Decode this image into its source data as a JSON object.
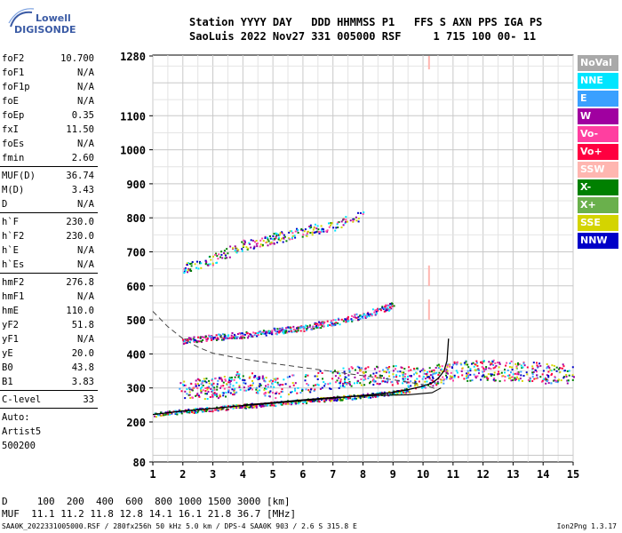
{
  "logo": {
    "line1": "Lowell",
    "line2": "DIGISONDE"
  },
  "header": {
    "line1": "Station YYYY DAY   DDD HHMMSS P1   FFS S AXN PPS IGA PS",
    "line2": "SaoLuis 2022 Nov27 331 005000 RSF     1 715 100 00- 11"
  },
  "params": [
    {
      "label": "foF2",
      "value": "10.700"
    },
    {
      "label": "foF1",
      "value": "N/A"
    },
    {
      "label": "foF1p",
      "value": "N/A"
    },
    {
      "label": "foE",
      "value": "N/A"
    },
    {
      "label": "foEp",
      "value": "0.35"
    },
    {
      "label": "fxI",
      "value": "11.50"
    },
    {
      "label": "foEs",
      "value": "N/A"
    },
    {
      "label": "fmin",
      "value": "2.60"
    },
    {
      "label": "MUF(D)",
      "value": "36.74",
      "sep_before": true
    },
    {
      "label": "M(D)",
      "value": "3.43"
    },
    {
      "label": "D",
      "value": "N/A"
    },
    {
      "label": "h`F",
      "value": "230.0",
      "sep_before": true
    },
    {
      "label": "h`F2",
      "value": "230.0"
    },
    {
      "label": "h`E",
      "value": "N/A"
    },
    {
      "label": "h`Es",
      "value": "N/A"
    },
    {
      "label": "hmF2",
      "value": "276.8",
      "sep_before": true
    },
    {
      "label": "hmF1",
      "value": "N/A"
    },
    {
      "label": "hmE",
      "value": "110.0"
    },
    {
      "label": "yF2",
      "value": "51.8"
    },
    {
      "label": "yF1",
      "value": "N/A"
    },
    {
      "label": "yE",
      "value": "20.0"
    },
    {
      "label": "B0",
      "value": "43.8"
    },
    {
      "label": "B1",
      "value": "3.83"
    },
    {
      "label": "C-level",
      "value": "33",
      "sep_before": true
    }
  ],
  "autoscaling": {
    "line1": "Auto:",
    "line2": "Artist5",
    "line3": "500200"
  },
  "legend": [
    {
      "label": "NoVal",
      "color": "#a9a9a9"
    },
    {
      "label": "NNE",
      "color": "#00e5ff"
    },
    {
      "label": "E",
      "color": "#3aa0ff"
    },
    {
      "label": "W",
      "color": "#a000a0"
    },
    {
      "label": "Vo-",
      "color": "#ff3fa0"
    },
    {
      "label": "Vo+",
      "color": "#ff0040"
    },
    {
      "label": "SSW",
      "color": "#ffb6b0"
    },
    {
      "label": "X-",
      "color": "#008000"
    },
    {
      "label": "X+",
      "color": "#6ab04c"
    },
    {
      "label": "SSE",
      "color": "#d4d400"
    },
    {
      "label": "NNW",
      "color": "#0000c8"
    }
  ],
  "muf_table": {
    "line1": "D     100  200  400  600  800 1000 1500 3000 [km]",
    "line2": "MUF  11.1 11.2 11.8 12.8 14.1 16.1 21.8 36.7 [MHz]"
  },
  "footer": "SAA0K_2022331005000.RSF / 280fx256h 50 kHz 5.0 km / DPS-4 SAA0K 903 / 2.6 S 315.8 E",
  "footer_right": "Ion2Png 1.3.17",
  "chart_data": {
    "type": "scatter",
    "x_label_unit": "MHz",
    "xlim": [
      1,
      15
    ],
    "ylim": [
      80,
      1280
    ],
    "x_ticks": [
      "1",
      "2",
      "3",
      "4",
      "5",
      "6",
      "7",
      "8",
      "9",
      "10",
      "11",
      "12",
      "13",
      "14",
      "15"
    ],
    "y_ticks": [
      "80",
      "200",
      "300",
      "400",
      "500",
      "600",
      "700",
      "800",
      "900",
      "1000",
      "1100",
      "1280"
    ],
    "y_tick_values": [
      80,
      200,
      300,
      400,
      500,
      600,
      700,
      800,
      900,
      1000,
      1100,
      1280
    ],
    "grid": true,
    "ordinary_trace": [
      [
        1.0,
        222
      ],
      [
        2.0,
        232
      ],
      [
        3.0,
        240
      ],
      [
        4.0,
        248
      ],
      [
        5.0,
        255
      ],
      [
        6.0,
        263
      ],
      [
        7.0,
        270
      ],
      [
        8.0,
        278
      ],
      [
        9.0,
        287
      ],
      [
        9.5,
        295
      ],
      [
        10.0,
        305
      ],
      [
        10.3,
        315
      ],
      [
        10.5,
        328
      ],
      [
        10.7,
        350
      ],
      [
        10.8,
        380
      ],
      [
        10.85,
        445
      ]
    ],
    "ordinary_trace_return": [
      [
        10.6,
        300
      ],
      [
        10.3,
        286
      ],
      [
        9.5,
        280
      ],
      [
        8.5,
        278
      ],
      [
        7.0,
        272
      ],
      [
        6.0,
        265
      ],
      [
        5.0,
        257
      ],
      [
        4.0,
        250
      ]
    ],
    "edp_dashed": [
      [
        1.0,
        525
      ],
      [
        1.5,
        480
      ],
      [
        2.0,
        445
      ],
      [
        2.5,
        420
      ],
      [
        3.0,
        402
      ],
      [
        4.0,
        385
      ],
      [
        5.0,
        372
      ],
      [
        6.0,
        360
      ],
      [
        7.0,
        348
      ],
      [
        8.0,
        336
      ],
      [
        9.0,
        324
      ],
      [
        10.0,
        310
      ],
      [
        10.5,
        295
      ]
    ],
    "f_layer_echoes": [
      [
        2.0,
        440
      ],
      [
        3.0,
        450
      ],
      [
        4.0,
        458
      ],
      [
        5.0,
        468
      ],
      [
        6.0,
        478
      ],
      [
        7.0,
        495
      ],
      [
        8.0,
        515
      ],
      [
        9.0,
        545
      ]
    ],
    "f_layer_2hop": [
      [
        2.0,
        650
      ],
      [
        3.0,
        680
      ],
      [
        4.0,
        720
      ],
      [
        5.0,
        740
      ],
      [
        6.0,
        760
      ],
      [
        7.0,
        780
      ],
      [
        8.0,
        810
      ]
    ],
    "spread_band": [
      [
        2.0,
        300
      ],
      [
        3.0,
        300
      ],
      [
        4.0,
        320
      ],
      [
        5.0,
        300
      ],
      [
        7.0,
        330
      ],
      [
        8.0,
        340
      ],
      [
        9.0,
        340
      ],
      [
        10.0,
        330
      ],
      [
        11.0,
        350
      ],
      [
        12.0,
        355
      ],
      [
        13.0,
        350
      ],
      [
        14.0,
        345
      ],
      [
        14.9,
        340
      ]
    ],
    "vertical_marker": {
      "x": 10.2,
      "y_range": [
        1240,
        1280
      ],
      "color": "#ffb6b0"
    },
    "vertical_marker_2": {
      "x": 10.2,
      "y_range": [
        500,
        560
      ],
      "color": "#ffb6b0"
    },
    "vertical_marker_3": {
      "x": 10.2,
      "y_range": [
        600,
        660
      ],
      "color": "#ffb6b0"
    }
  }
}
